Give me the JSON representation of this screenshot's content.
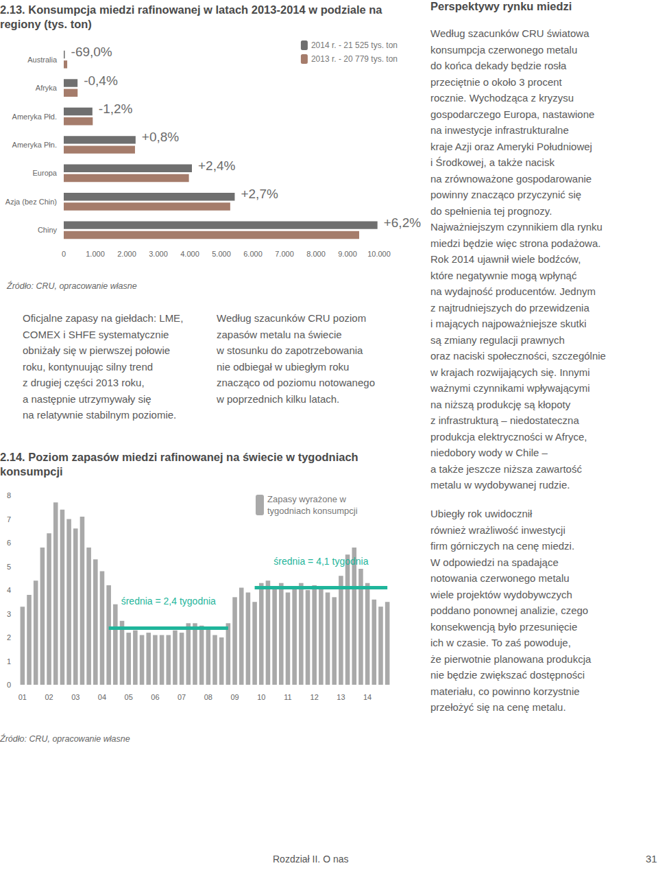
{
  "chart_data": [
    {
      "type": "bar",
      "title": "2.13. Konsumpcja miedzi rafinowanej w latach 2013-2014 w podziale na regiony (tys. ton)",
      "orientation": "horizontal",
      "categories": [
        "Australia",
        "Afryka",
        "Ameryka Płd.",
        "Ameryka Płn.",
        "Europa",
        "Azja (bez Chin)",
        "Chiny"
      ],
      "series": [
        {
          "name": "2014 r. - 21 525 tys. ton",
          "color": "#6f6f6f",
          "values": [
            34,
            438,
            909,
            2278,
            4065,
            5423,
            9950
          ]
        },
        {
          "name": "2013 r. - 20 779 tys. ton",
          "color": "#a57c6b",
          "values": [
            110,
            440,
            920,
            2260,
            3970,
            5280,
            9370
          ]
        }
      ],
      "annotations": [
        "-69,0%",
        "-0,4%",
        "-1,2%",
        "+0,8%",
        "+2,4%",
        "+2,7%",
        "+6,2%"
      ],
      "xlim": [
        0,
        10000
      ],
      "xticks": [
        0,
        {
          "value": 1000,
          "label": "1.000"
        },
        {
          "value": 2000,
          "label": "2.000"
        },
        {
          "value": 3000,
          "label": "3.000"
        },
        {
          "value": 4000,
          "label": "4.000"
        },
        {
          "value": 5000,
          "label": "5.000"
        },
        {
          "value": 6000,
          "label": "6.000"
        },
        {
          "value": 7000,
          "label": "7.000"
        },
        {
          "value": 8000,
          "label": "8.000"
        },
        {
          "value": 9000,
          "label": "9.000"
        },
        {
          "value": 10000,
          "label": "10.000"
        }
      ],
      "grid": false,
      "legend": "top-right"
    },
    {
      "type": "bar",
      "title": "2.14. Poziom zapasów miedzi rafinowanej na świecie w tygodniach konsumpcji",
      "categories": [
        "01",
        null,
        null,
        null,
        "02",
        null,
        null,
        null,
        "03",
        null,
        null,
        null,
        "04",
        null,
        null,
        null,
        "05",
        null,
        null,
        null,
        "06",
        null,
        null,
        null,
        "07",
        null,
        null,
        null,
        "08",
        null,
        null,
        null,
        "09",
        null,
        null,
        null,
        "10",
        null,
        null,
        null,
        "11",
        null,
        null,
        null,
        "12",
        null,
        null,
        null,
        "13",
        null,
        null,
        null,
        "14",
        null,
        null,
        null
      ],
      "series": [
        {
          "name": "Zapasy wyrażone w tygodniach konsumpcji",
          "color": "#a9a9a9",
          "values": [
            3.3,
            3.8,
            4.4,
            5.8,
            6.4,
            7.7,
            7.4,
            7.0,
            6.6,
            7.1,
            5.8,
            5.3,
            4.8,
            4.2,
            3.4,
            2.7,
            2.2,
            2.3,
            2.1,
            2.2,
            2.1,
            2.1,
            2.1,
            2.3,
            2.2,
            2.6,
            2.6,
            2.5,
            2.4,
            2.1,
            2.0,
            2.6,
            3.7,
            4.1,
            3.9,
            3.5,
            4.3,
            4.4,
            4.1,
            4.3,
            3.9,
            4.1,
            4.3,
            4.0,
            4.2,
            4.1,
            3.9,
            3.7,
            4.6,
            5.5,
            5.8,
            4.9,
            4.3,
            3.6,
            3.3,
            3.5
          ]
        }
      ],
      "averages": [
        {
          "label": "średnia = 2,4 tygodnia",
          "value": 2.4,
          "start": 13,
          "end": 31,
          "color": "#1fb59b"
        },
        {
          "label": "średnia = 4,1 tygodnia",
          "value": 4.1,
          "start": 35,
          "end": 55,
          "color": "#1fb59b"
        }
      ],
      "ylim": [
        0,
        8
      ],
      "yticks": [
        0,
        1,
        2,
        3,
        4,
        5,
        6,
        7,
        8
      ],
      "grid": false,
      "legend": "top-right"
    }
  ],
  "page": {
    "sources": [
      "Źródło: CRU, opracowanie własne",
      "Źródło: CRU, opracowanie własne"
    ],
    "left_paragraph": [
      "Oficjalne zapasy na giełdach: LME,",
      "COMEX i SHFE systematycznie",
      "obniżały się w pierwszej połowie",
      "roku, kontynuując silny trend",
      "z drugiej części 2013 roku,",
      "a następnie utrzymywały się",
      "na relatywnie stabilnym poziomie."
    ],
    "middle_paragraph": [
      "Według szacunków CRU poziom",
      "zapasów metalu na świecie",
      "w stosunku do zapotrzebowania",
      "nie odbiegał w ubiegłym roku",
      "znacząco od poziomu notowanego",
      "w poprzednich kilku latach."
    ],
    "right_heading": "Perspektywy rynku miedzi",
    "right_paragraphs": [
      [
        "Według szacunków CRU światowa",
        "konsumpcja czerwonego metalu",
        "do końca dekady będzie rosła",
        "przeciętnie o około 3 procent",
        "rocznie. Wychodząca z kryzysu",
        "gospodarczego Europa, nastawione",
        "na inwestycje infrastrukturalne",
        "kraje Azji oraz Ameryki Południowej",
        "i Środkowej, a także nacisk",
        "na zrównoważone gospodarowanie",
        "powinny znacząco przyczynić się",
        "do spełnienia tej prognozy.",
        "Najważniejszym czynnikiem dla rynku",
        "miedzi będzie więc strona podażowa.",
        "Rok 2014 ujawnił wiele bodźców,",
        "które negatywnie mogą wpłynąć",
        "na wydajność producentów. Jednym",
        "z najtrudniejszych do przewidzenia",
        "i mających najpoważniejsze skutki",
        "są zmiany regulacji prawnych",
        "oraz naciski społeczności, szczególnie",
        "w krajach rozwijających się. Innymi",
        "ważnymi czynnikami wpływającymi",
        "na niższą produkcję są kłopoty",
        "z infrastrukturą – niedostateczna",
        "produkcja elektryczności w Afryce,",
        "niedobory wody w Chile –",
        "a także jeszcze niższa zawartość",
        "metalu w wydobywanej rudzie."
      ],
      [
        "Ubiegły rok uwidocznił",
        "również wrażliwość inwestycji",
        "firm górniczych na cenę miedzi.",
        "W odpowiedzi na spadające",
        "notowania czerwonego metalu",
        "wiele projektów wydobywczych",
        "poddano ponownej analizie, czego",
        "konsekwencją było przesunięcie",
        "ich w czasie. To zaś powoduje,",
        "że pierwotnie planowana produkcja",
        "nie będzie zwiększać dostępności",
        "materiału, co powinno korzystnie",
        "przełożyć się na cenę metalu."
      ]
    ],
    "footer": {
      "section": "Rozdział II. O nas",
      "page_number": 31
    }
  }
}
